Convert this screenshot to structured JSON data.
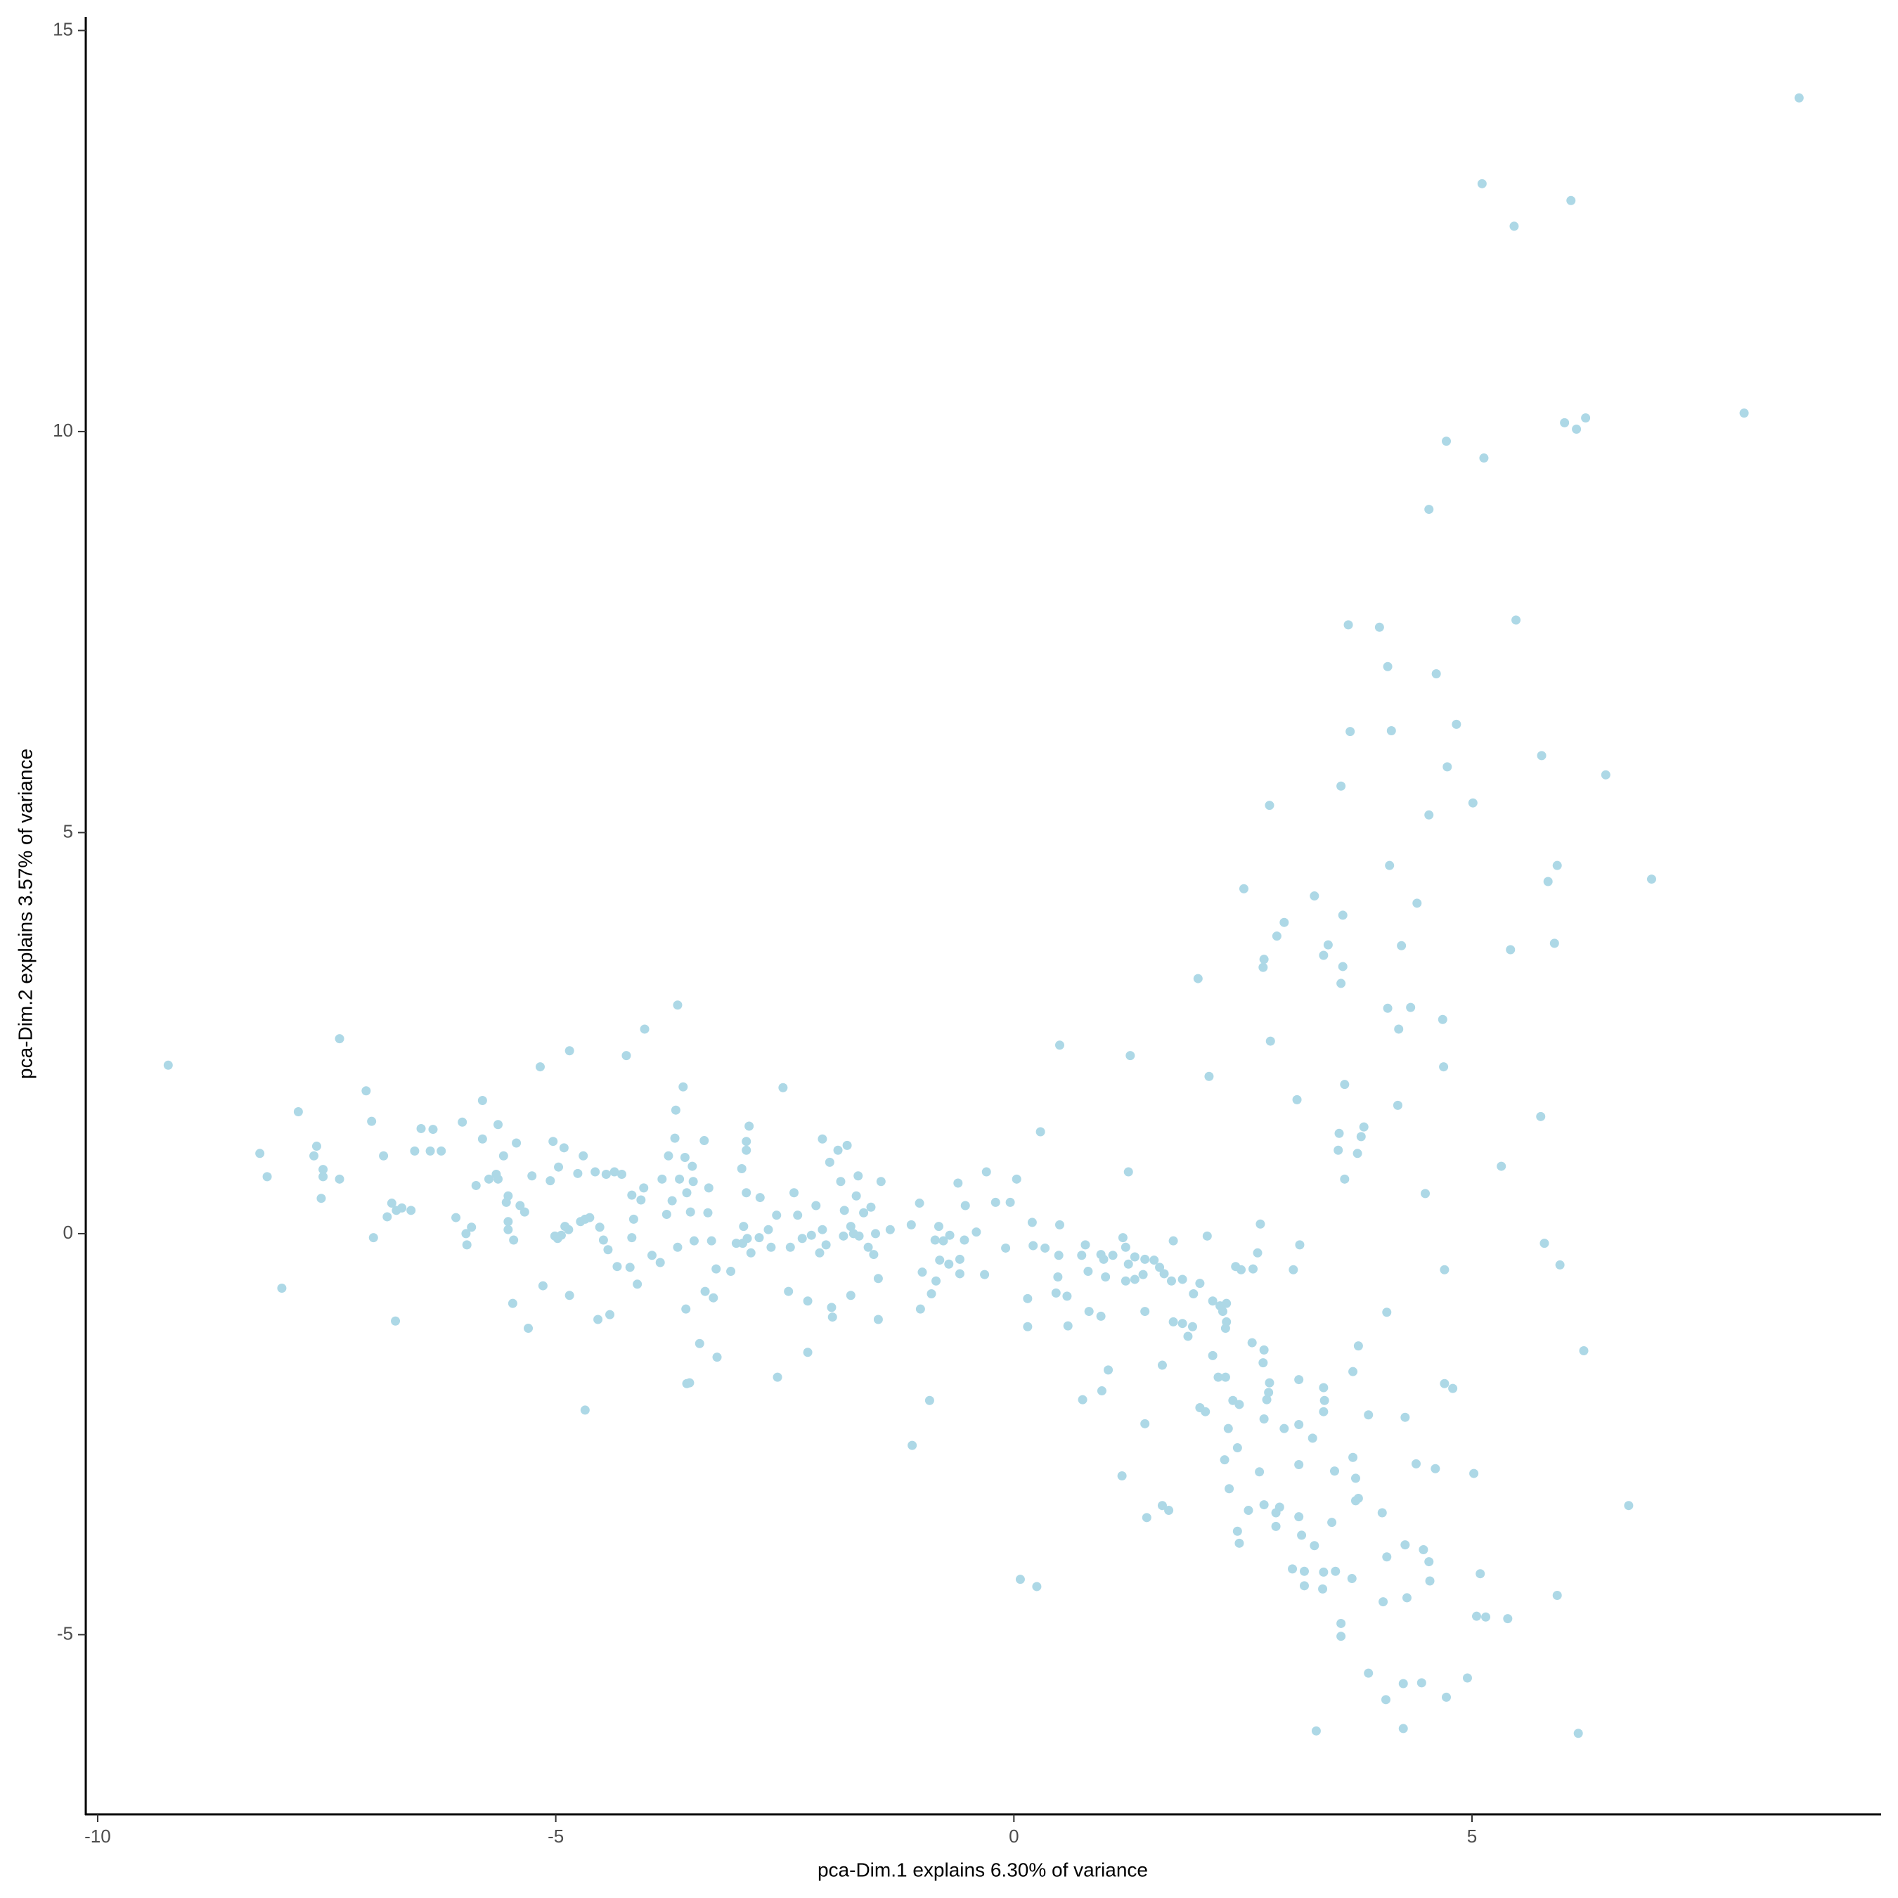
{
  "chart_data": {
    "type": "scatter",
    "xlabel": "pca-Dim.1 explains 6.30% of variance",
    "ylabel": "pca-Dim.2 explains 3.57% of variance",
    "color": "#add8e6",
    "xlim": [
      -10.13,
      9.45
    ],
    "ylim": [
      -7.24,
      15.17
    ],
    "xticks": [
      -10,
      -5,
      0,
      5
    ],
    "yticks": [
      -5,
      0,
      5,
      10,
      15
    ],
    "grid": false,
    "x": [
      -9.23,
      8.57,
      5.11,
      5.46,
      6.08,
      7.97,
      6.01,
      6.14,
      6.24,
      4.72,
      5.13,
      4.53,
      3.65,
      3.99,
      5.48,
      4.08,
      4.61,
      4.83,
      3.67,
      4.12,
      5.76,
      6.46,
      4.73,
      3.57,
      2.79,
      5.01,
      4.53,
      4.1,
      5.93,
      5.83,
      6.96,
      2.51,
      3.28,
      4.4,
      3.59,
      2.95,
      2.87,
      3.43,
      4.23,
      5.9,
      5.42,
      3.38,
      2.73,
      2.72,
      3.59,
      2.01,
      3.57,
      4.08,
      4.33,
      4.68,
      4.2,
      2.8,
      0.5,
      1.27,
      4.69,
      2.13,
      3.61,
      3.09,
      4.19,
      5.75,
      3.82,
      3.55,
      3.79,
      0.29,
      3.54,
      3.75,
      3.61,
      5.32,
      1.25,
      4.49,
      2.69,
      3.12,
      5.79,
      5.96,
      4.7,
      3.05,
      4.07,
      6.22,
      3.76,
      3.7,
      4.7,
      4.79,
      3.87,
      4.27,
      5.02,
      4.6,
      4.39,
      6.71,
      4.02,
      4.27,
      4.47,
      4.53,
      4.54,
      4.07,
      5.09,
      5.93,
      4.29,
      4.03,
      5.05,
      5.15,
      5.39,
      3.57,
      3.57,
      3.87,
      4.95,
      4.45,
      4.25,
      4.06,
      4.72,
      3.3,
      4.25,
      6.16,
      0.07,
      0.25,
      -1.11,
      -0.92,
      -2.58,
      -3.57,
      -4.68,
      1.18,
      1.45,
      1.62,
      1.69,
      1.43,
      0.75,
      1.03,
      0.96,
      1.62,
      2.31,
      2.23,
      2.39,
      2.46,
      2.72,
      2.73,
      2.6,
      2.79,
      2.78,
      2.76,
      2.73,
      2.95,
      3.11,
      3.38,
      3.39,
      3.38,
      3.11,
      2.34,
      2.44,
      2.3,
      2.35,
      2.68,
      3.11,
      3.26,
      3.5,
      3.7,
      3.73,
      3.73,
      3.76,
      2.56,
      2.73,
      2.9,
      2.86,
      2.86,
      3.11,
      3.47,
      2.44,
      2.46,
      3.14,
      3.28,
      3.04,
      3.17,
      3.38,
      3.51,
      3.69,
      3.17,
      3.37,
      0.03,
      -0.3,
      -0.2,
      -0.04,
      -0.09,
      0.2,
      0.21,
      0.34,
      0.5,
      0.49,
      0.48,
      0.46,
      0.58,
      0.15,
      0.15,
      0.59,
      0.74,
      0.78,
      0.81,
      0.82,
      0.95,
      0.95,
      0.98,
      1.08,
      1.19,
      1.22,
      1.25,
      1.22,
      1.32,
      1.32,
      1.41,
      1.43,
      1.53,
      1.59,
      1.64,
      1.72,
      1.74,
      1.84,
      1.96,
      1.74,
      1.84,
      1.95,
      1.9,
      2.03,
      2.11,
      2.17,
      2.25,
      2.28,
      2.32,
      2.32,
      2.31,
      2.17,
      2.03,
      2.09,
      2.42,
      2.48,
      2.61,
      2.66,
      1.43,
      1.0,
      -0.9,
      -1.0,
      -1.12,
      -0.82,
      -0.86,
      -0.77,
      -0.81,
      -0.85,
      -0.71,
      -0.7,
      -0.59,
      -0.59,
      -0.54,
      -0.53,
      -0.61,
      -0.41,
      -0.32,
      -1.03,
      -1.02,
      -8.23,
      -8.15,
      -7.99,
      -7.81,
      -7.61,
      -7.64,
      -7.54,
      -7.54,
      -7.56,
      -7.36,
      -7.36,
      -7.07,
      -7.01,
      -6.88,
      -6.99,
      -6.84,
      -6.79,
      -6.74,
      -6.68,
      -6.75,
      -6.58,
      -6.54,
      -6.47,
      -6.37,
      -6.34,
      -6.25,
      -6.09,
      -6.02,
      -5.98,
      -5.97,
      -5.92,
      -5.87,
      -5.8,
      -5.8,
      -5.73,
      -5.65,
      -5.63,
      -5.63,
      -5.57,
      -5.54,
      -5.52,
      -5.52,
      -5.52,
      -5.47,
      -5.46,
      -5.43,
      -5.39,
      -5.34,
      -5.3,
      -5.26,
      -5.17,
      -5.14,
      -5.06,
      -5.03,
      -5.01,
      -4.98,
      -4.97,
      -4.94,
      -4.91,
      -4.9,
      -4.86,
      -4.85,
      -4.85,
      -4.76,
      -4.73,
      -4.7,
      -4.68,
      -4.63,
      -4.57,
      -4.54,
      -4.52,
      -4.48,
      -4.45,
      -4.43,
      -4.41,
      -4.36,
      -4.33,
      -4.28,
      -4.23,
      -4.19,
      -4.17,
      -4.17,
      -4.15,
      -4.11,
      -4.07,
      -4.04,
      -4.03,
      -3.95,
      -3.86,
      -3.84,
      -3.79,
      -3.77,
      -3.73,
      -3.7,
      -3.69,
      -3.67,
      -3.67,
      -3.65,
      -3.61,
      -3.59,
      -3.58,
      -3.57,
      -3.54,
      -3.53,
      -3.51,
      -3.5,
      -3.49,
      -3.43,
      -3.38,
      -3.37,
      -3.34,
      -3.33,
      -3.3,
      -3.28,
      -3.25,
      -3.24,
      -3.09,
      -3.03,
      -2.97,
      -2.96,
      -2.95,
      -2.92,
      -2.92,
      -2.92,
      -2.91,
      -2.89,
      -2.87,
      -2.78,
      -2.77,
      -2.68,
      -2.65,
      -2.59,
      -2.52,
      -2.46,
      -2.44,
      -2.4,
      -2.36,
      -2.31,
      -2.25,
      -2.25,
      -2.21,
      -2.16,
      -2.12,
      -2.09,
      -2.09,
      -2.05,
      -2.01,
      -1.99,
      -1.98,
      -1.92,
      -1.89,
      -1.86,
      -1.85,
      -1.82,
      -1.78,
      -1.78,
      -1.75,
      -1.72,
      -1.7,
      -1.69,
      -1.64,
      -1.59,
      -1.56,
      -1.53,
      -1.48,
      -1.48,
      -1.45,
      -1.35,
      -1.51
    ],
    "values": [
      2.1,
      14.16,
      13.09,
      12.56,
      12.88,
      10.23,
      10.11,
      10.03,
      10.17,
      9.88,
      9.67,
      9.03,
      7.59,
      7.56,
      7.65,
      7.07,
      6.98,
      6.35,
      6.26,
      6.27,
      5.96,
      5.72,
      5.82,
      5.58,
      5.34,
      5.37,
      5.22,
      4.59,
      4.59,
      4.39,
      4.42,
      4.3,
      4.21,
      4.12,
      3.97,
      3.88,
      3.71,
      3.6,
      3.59,
      3.62,
      3.54,
      3.47,
      3.42,
      3.32,
      3.33,
      3.18,
      3.12,
      2.81,
      2.82,
      2.67,
      2.55,
      2.4,
      2.35,
      2.22,
      2.08,
      1.96,
      1.86,
      1.67,
      1.6,
      1.46,
      1.33,
      1.25,
      1.21,
      1.27,
      1.04,
      1.0,
      0.68,
      0.84,
      0.77,
      0.5,
      0.12,
      -0.14,
      -0.12,
      -0.39,
      -0.45,
      -0.45,
      -0.98,
      -1.46,
      -1.4,
      -1.72,
      -1.87,
      -1.93,
      -2.26,
      -2.29,
      -2.99,
      -2.93,
      -2.87,
      -3.39,
      -3.48,
      -3.88,
      -3.94,
      -4.09,
      -4.33,
      -4.03,
      -4.24,
      -4.51,
      -4.54,
      -4.59,
      -4.77,
      -4.78,
      -4.8,
      -4.86,
      -5.02,
      -5.48,
      -5.54,
      -5.6,
      -5.61,
      -5.81,
      -5.78,
      -6.2,
      -6.17,
      -6.23,
      -4.31,
      -4.4,
      -2.64,
      -2.08,
      -1.79,
      -1.87,
      -2.2,
      -3.02,
      -3.54,
      -3.39,
      -3.45,
      -2.37,
      -2.07,
      -1.7,
      -1.96,
      -1.64,
      -1.79,
      -1.79,
      -2.08,
      -2.13,
      -1.61,
      -1.45,
      -1.36,
      -1.86,
      -1.98,
      -2.07,
      -2.31,
      -2.43,
      -1.82,
      -1.92,
      -2.08,
      -2.22,
      -2.38,
      -2.43,
      -2.67,
      -2.82,
      -3.18,
      -2.97,
      -2.88,
      -2.55,
      -2.96,
      -2.79,
      -3.05,
      -3.33,
      -3.3,
      -3.45,
      -3.38,
      -3.41,
      -3.48,
      -3.65,
      -3.53,
      -3.6,
      -3.71,
      -3.86,
      -3.76,
      -3.89,
      -4.18,
      -4.21,
      -4.22,
      -4.21,
      -4.3,
      -4.39,
      -4.43,
      0.68,
      0.77,
      0.39,
      0.39,
      -0.18,
      0.14,
      -0.15,
      -0.18,
      0.11,
      -0.27,
      -0.54,
      -0.74,
      -0.78,
      -0.81,
      -1.16,
      -1.15,
      -0.27,
      -0.14,
      -0.47,
      -0.97,
      -1.03,
      -0.26,
      -0.32,
      -0.27,
      -0.05,
      -0.17,
      -0.38,
      -0.59,
      -0.57,
      -0.29,
      -0.51,
      -0.32,
      -0.33,
      -0.42,
      -0.5,
      -0.59,
      -0.09,
      -0.57,
      -0.75,
      -1.1,
      -1.12,
      -1.16,
      -1.28,
      -0.62,
      -0.03,
      -0.84,
      -0.9,
      -0.97,
      -0.87,
      -1.1,
      -1.18,
      -1.52,
      -2.17,
      -2.22,
      -0.41,
      -0.45,
      -0.44,
      -0.24,
      -0.97,
      -0.54,
      -0.75,
      -0.48,
      0.11,
      0.09,
      -0.08,
      -0.09,
      -0.33,
      -0.59,
      -0.38,
      -0.02,
      -0.32,
      -0.5,
      -0.08,
      0.35,
      0.63,
      0.02,
      -0.51,
      0.38,
      -0.94,
      1.0,
      0.71,
      -0.68,
      1.52,
      1.09,
      0.97,
      0.8,
      0.71,
      0.44,
      2.43,
      0.68,
      1.78,
      1.4,
      0.97,
      -0.05,
      0.21,
      0.38,
      0.29,
      0.32,
      -1.09,
      0.29,
      1.03,
      1.31,
      1.03,
      1.3,
      1.03,
      0.2,
      1.39,
      0.0,
      -0.14,
      0.08,
      0.6,
      1.18,
      1.66,
      0.68,
      0.74,
      1.36,
      0.68,
      0.97,
      0.39,
      0.15,
      0.05,
      0.47,
      -0.87,
      -0.08,
      1.13,
      0.35,
      0.27,
      -1.18,
      0.72,
      2.08,
      -0.65,
      0.66,
      1.15,
      -0.03,
      -0.06,
      0.83,
      -0.02,
      1.07,
      0.09,
      0.05,
      2.28,
      -0.77,
      0.75,
      0.15,
      0.97,
      0.18,
      0.2,
      0.77,
      -1.07,
      0.08,
      -0.08,
      0.74,
      -0.2,
      -1.01,
      0.77,
      -0.41,
      0.74,
      2.22,
      -0.42,
      -0.05,
      0.48,
      0.18,
      -0.63,
      0.42,
      0.57,
      2.55,
      -0.27,
      -0.36,
      0.68,
      0.24,
      0.97,
      0.41,
      1.19,
      1.54,
      2.85,
      -0.17,
      0.68,
      1.83,
      0.95,
      -0.94,
      0.51,
      -1.86,
      0.27,
      0.84,
      0.65,
      -0.09,
      -1.37,
      1.16,
      -0.72,
      0.26,
      0.57,
      -0.09,
      -0.8,
      -0.44,
      -1.54,
      -0.47,
      -0.12,
      0.81,
      -0.12,
      0.09,
      1.15,
      1.04,
      0.51,
      -0.06,
      1.34,
      -0.24,
      -0.05,
      0.45,
      0.05,
      -0.17,
      0.23,
      1.82,
      -0.72,
      -0.17,
      0.51,
      0.23,
      -0.06,
      -0.84,
      -1.48,
      -0.02,
      0.35,
      -0.24,
      1.18,
      0.05,
      -0.14,
      0.89,
      -0.92,
      -1.04,
      1.04,
      0.65,
      -0.03,
      0.29,
      1.1,
      -0.77,
      0.09,
      0.0,
      0.47,
      0.72,
      -0.03,
      0.26,
      -0.17,
      0.33,
      -0.26,
      -0.56,
      -1.07,
      0.65,
      0.05,
      0.0
    ]
  }
}
